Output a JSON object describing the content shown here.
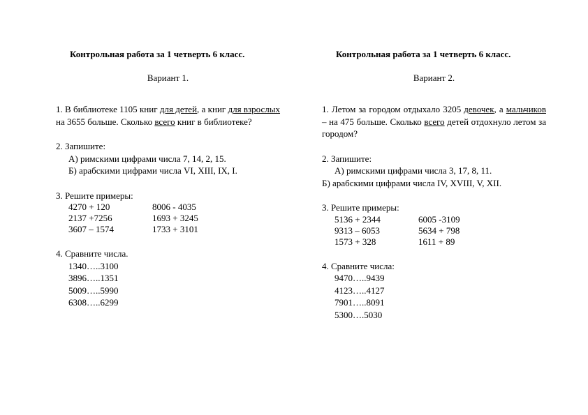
{
  "left": {
    "title": "Контрольная  работа за 1 четверть  6 класс.",
    "variant": "Вариант 1.",
    "task1_prefix": "1.  В  библиотеке  1105  книг  ",
    "task1_u1": "для  детей",
    "task1_mid1": ",  а  книг  ",
    "task1_u2": "для взрослых",
    "task1_mid2": "  на  3655  больше.  Сколько  ",
    "task1_u3": "всего",
    "task1_suffix": "  книг  в библиотеке?",
    "task2_head": "2.  Запишите:",
    "task2_a": "А) римскими цифрами числа 7,  14,  2,  15.",
    "task2_b": "Б) арабскими цифрами числа VI, XIII,  IX, I.",
    "task3_head": "3.  Решите примеры:",
    "task3_c1r1": "4270 + 120",
    "task3_c1r2": "2137 +7256",
    "task3_c1r3": "3607 – 1574",
    "task3_c2r1": "8006 - 4035",
    "task3_c2r2": "1693 + 3245",
    "task3_c2r3": "1733 + 3101",
    "task4_head": "4.  Сравните числа.",
    "task4_r1": "1340…..3100",
    "task4_r2": "3896…..1351",
    "task4_r3": "5009…..5990",
    "task4_r4": "6308…..6299"
  },
  "right": {
    "title": "Контрольная  работа за 1 четверть 6 класс.",
    "variant": "Вариант 2.",
    "task1_prefix": "1.  Летом  за  городом  отдыхало  3205  ",
    "task1_u1": "девочек",
    "task1_mid1": ",  а ",
    "task1_u2": "мальчиков",
    "task1_mid2": " – на 475 больше. Сколько ",
    "task1_u3": "всего",
    "task1_suffix": " детей отдохнуло летом за городом?",
    "task2_head": "2.  Запишите:",
    "task2_a": "А) римскими цифрами числа 3,  17,  8,  11.",
    "task2_b": "Б) арабскими цифрами числа IV,  XVIII,  V,  XII.",
    "task3_head": "3.  Решите примеры:",
    "task3_c1r1": "5136 + 2344",
    "task3_c1r2": "9313 – 6053",
    "task3_c1r3": "1573 + 328",
    "task3_c2r1": "6005 -3109",
    "task3_c2r2": "5634 + 798",
    "task3_c2r3": "1611 + 89",
    "task4_head": "4.  Сравните числа:",
    "task4_r1": "9470…..9439",
    "task4_r2": "4123…..4127",
    "task4_r3": "7901…..8091",
    "task4_r4": "5300….5030"
  }
}
